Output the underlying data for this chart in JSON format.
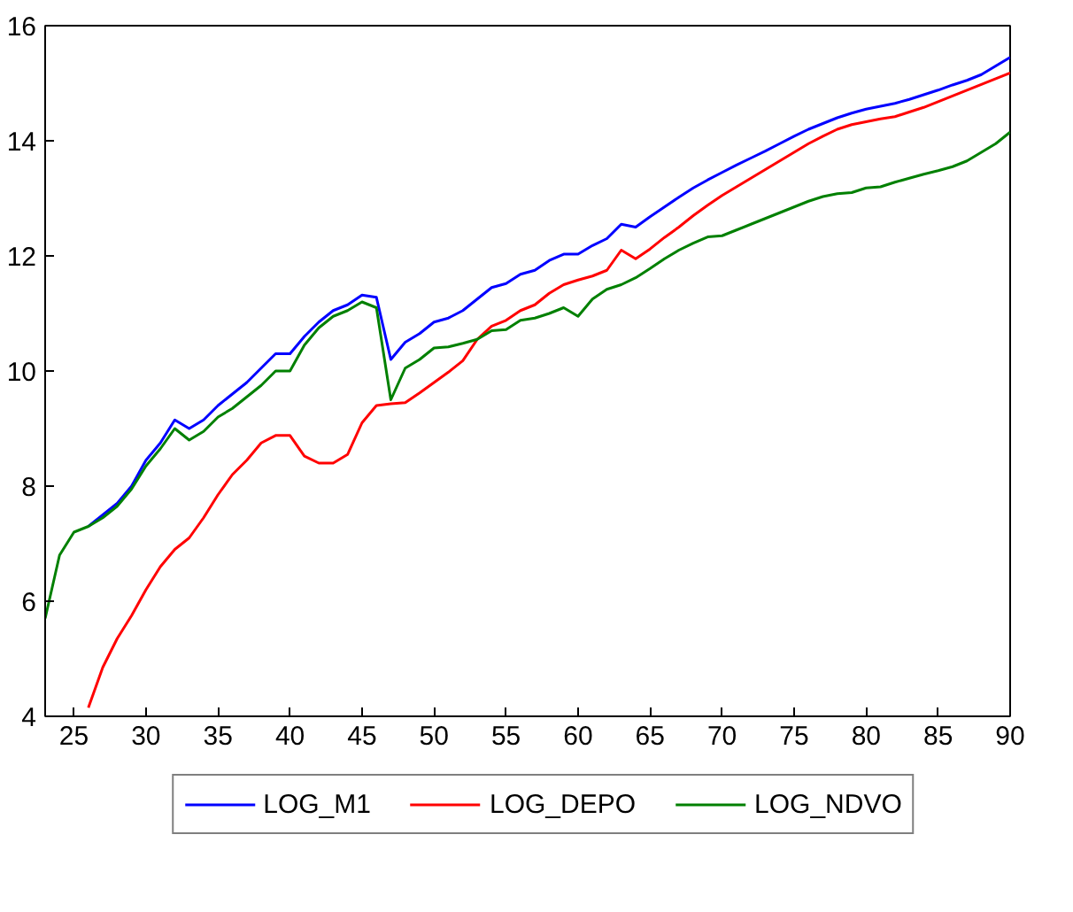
{
  "chart_data": {
    "type": "line",
    "xlim": [
      23,
      90
    ],
    "ylim": [
      4,
      16
    ],
    "xticks": [
      25,
      30,
      35,
      40,
      45,
      50,
      55,
      60,
      65,
      70,
      75,
      80,
      85,
      90
    ],
    "yticks": [
      4,
      6,
      8,
      10,
      12,
      14,
      16
    ],
    "grid": false,
    "legend": "bottom",
    "marker": "none",
    "line_style": "solid",
    "series": [
      {
        "name": "LOG_M1",
        "color": "#0000ff",
        "x": [
          26,
          27,
          28,
          29,
          30,
          31,
          32,
          33,
          34,
          35,
          36,
          37,
          38,
          39,
          40,
          41,
          42,
          43,
          44,
          45,
          46,
          47,
          48,
          49,
          50,
          51,
          52,
          53,
          54,
          55,
          56,
          57,
          58,
          59,
          60,
          61,
          62,
          63,
          64,
          65,
          66,
          67,
          68,
          69,
          70,
          71,
          72,
          73,
          74,
          75,
          76,
          77,
          78,
          79,
          80,
          81,
          82,
          83,
          84,
          85,
          86,
          87,
          88,
          89,
          90
        ],
        "values": [
          7.3,
          7.5,
          7.7,
          8.0,
          8.45,
          8.75,
          9.15,
          9.0,
          9.15,
          9.4,
          9.6,
          9.8,
          10.05,
          10.3,
          10.3,
          10.6,
          10.85,
          11.05,
          11.15,
          11.32,
          11.28,
          10.2,
          10.5,
          10.65,
          10.85,
          10.92,
          11.05,
          11.25,
          11.45,
          11.52,
          11.68,
          11.75,
          11.92,
          12.03,
          12.03,
          12.18,
          12.3,
          12.55,
          12.5,
          12.68,
          12.85,
          13.02,
          13.18,
          13.32,
          13.45,
          13.58,
          13.7,
          13.82,
          13.95,
          14.08,
          14.2,
          14.3,
          14.4,
          14.48,
          14.55,
          14.6,
          14.65,
          14.72,
          14.8,
          14.88,
          14.97,
          15.05,
          15.15,
          15.3,
          15.45
        ]
      },
      {
        "name": "LOG_DEPO",
        "color": "#ff0000",
        "x": [
          26,
          27,
          28,
          29,
          30,
          31,
          32,
          33,
          34,
          35,
          36,
          37,
          38,
          39,
          40,
          41,
          42,
          43,
          44,
          45,
          46,
          47,
          48,
          49,
          50,
          51,
          52,
          53,
          54,
          55,
          56,
          57,
          58,
          59,
          60,
          61,
          62,
          63,
          64,
          65,
          66,
          67,
          68,
          69,
          70,
          71,
          72,
          73,
          74,
          75,
          76,
          77,
          78,
          79,
          80,
          81,
          82,
          83,
          84,
          85,
          86,
          87,
          88,
          89,
          90
        ],
        "values": [
          4.15,
          4.85,
          5.35,
          5.75,
          6.2,
          6.6,
          6.9,
          7.1,
          7.45,
          7.85,
          8.2,
          8.45,
          8.75,
          8.88,
          8.88,
          8.52,
          8.4,
          8.4,
          8.55,
          9.1,
          9.4,
          9.43,
          9.45,
          9.62,
          9.8,
          9.98,
          10.18,
          10.55,
          10.78,
          10.88,
          11.05,
          11.15,
          11.35,
          11.5,
          11.58,
          11.65,
          11.75,
          12.1,
          11.95,
          12.12,
          12.32,
          12.5,
          12.7,
          12.88,
          13.05,
          13.2,
          13.35,
          13.5,
          13.65,
          13.8,
          13.95,
          14.08,
          14.2,
          14.28,
          14.33,
          14.38,
          14.42,
          14.5,
          14.58,
          14.68,
          14.78,
          14.88,
          14.98,
          15.08,
          15.18
        ]
      },
      {
        "name": "LOG_NDVO",
        "color": "#008000",
        "x": [
          23,
          24,
          25,
          26,
          27,
          28,
          29,
          30,
          31,
          32,
          33,
          34,
          35,
          36,
          37,
          38,
          39,
          40,
          41,
          42,
          43,
          44,
          45,
          46,
          47,
          48,
          49,
          50,
          51,
          52,
          53,
          54,
          55,
          56,
          57,
          58,
          59,
          60,
          61,
          62,
          63,
          64,
          65,
          66,
          67,
          68,
          69,
          70,
          71,
          72,
          73,
          74,
          75,
          76,
          77,
          78,
          79,
          80,
          81,
          82,
          83,
          84,
          85,
          86,
          87,
          88,
          89,
          90
        ],
        "values": [
          5.7,
          6.8,
          7.2,
          7.3,
          7.45,
          7.65,
          7.95,
          8.35,
          8.65,
          9.0,
          8.8,
          8.95,
          9.2,
          9.35,
          9.55,
          9.75,
          10.0,
          10.0,
          10.45,
          10.75,
          10.95,
          11.05,
          11.2,
          11.1,
          9.5,
          10.05,
          10.2,
          10.4,
          10.42,
          10.48,
          10.55,
          10.7,
          10.72,
          10.88,
          10.92,
          11.0,
          11.1,
          10.95,
          11.25,
          11.42,
          11.5,
          11.62,
          11.78,
          11.95,
          12.1,
          12.22,
          12.33,
          12.35,
          12.45,
          12.55,
          12.65,
          12.75,
          12.85,
          12.95,
          13.03,
          13.08,
          13.1,
          13.18,
          13.2,
          13.28,
          13.35,
          13.42,
          13.48,
          13.55,
          13.65,
          13.8,
          13.95,
          14.15
        ]
      }
    ]
  }
}
